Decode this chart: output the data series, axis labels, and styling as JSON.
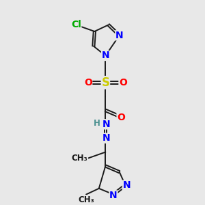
{
  "bg_color": "#e8e8e8",
  "atom_colors": {
    "C": "#1a1a1a",
    "N": "#0000ff",
    "O": "#ff0000",
    "S": "#cccc00",
    "Cl": "#00aa00",
    "H": "#4a9090"
  },
  "bond_color": "#1a1a1a",
  "bond_width": 1.4,
  "font_size_atom": 10,
  "font_size_small": 8.5
}
